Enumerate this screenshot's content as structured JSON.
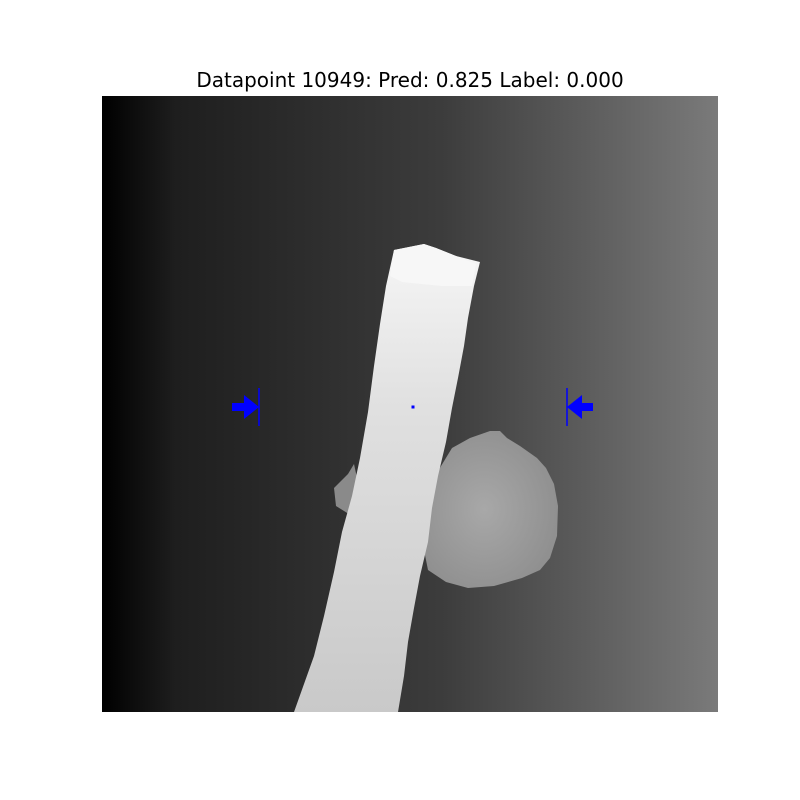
{
  "title": "Datapoint 10949: Pred: 0.825 Label: 0.000",
  "colors": {
    "background_left": "#000000",
    "background_right": "#777777",
    "rod": "#d8d8d8",
    "rod_tip": "#f4f4f4",
    "sphere": "#9a9a9a",
    "marker": "#0000ff"
  },
  "icons": {
    "left_marker": "right-arrow-with-bar-icon",
    "right_marker": "left-arrow-with-bar-icon",
    "center_marker": "dot-icon"
  }
}
